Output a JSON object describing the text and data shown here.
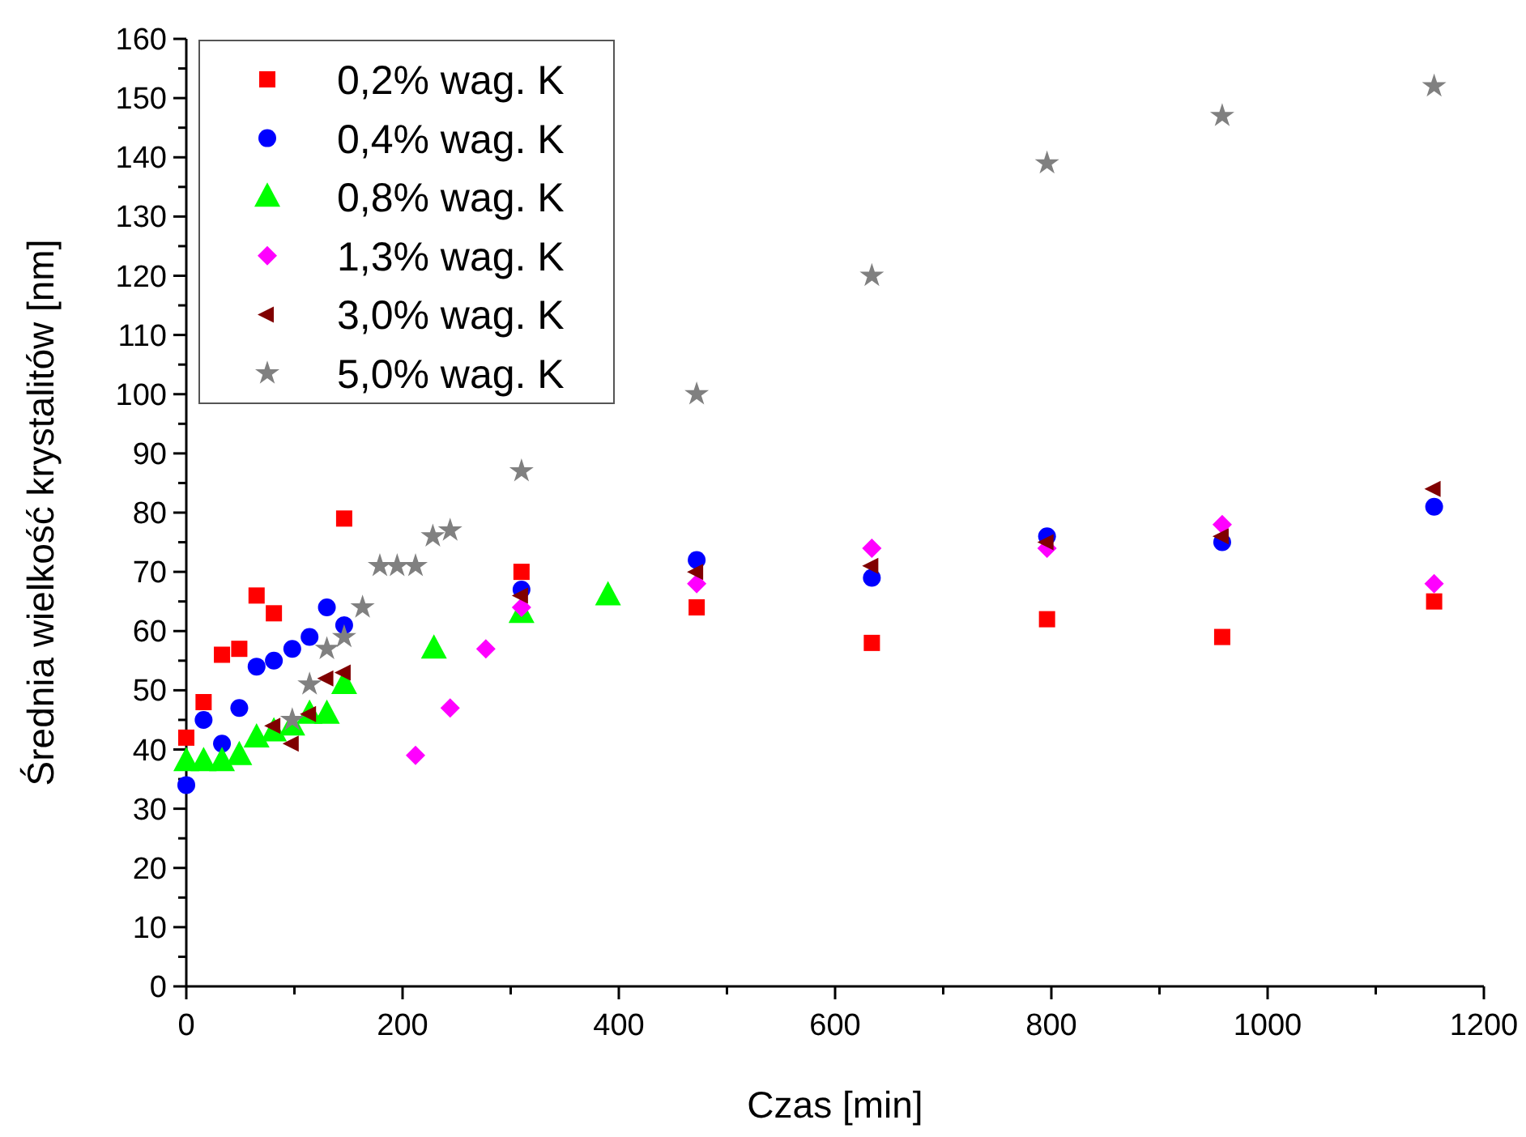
{
  "chart_data": {
    "type": "scatter",
    "xlabel": "Czas [min]",
    "ylabel": "Średnia wielkość krystalitów [nm]",
    "xlim": [
      0,
      1200
    ],
    "ylim": [
      0,
      160
    ],
    "xticks": [
      0,
      200,
      400,
      600,
      800,
      1000,
      1200
    ],
    "yticks": [
      0,
      10,
      20,
      30,
      40,
      50,
      60,
      70,
      80,
      90,
      100,
      110,
      120,
      130,
      140,
      150,
      160
    ],
    "grid": false,
    "legend": "top left",
    "series": [
      {
        "name": "0,2% wag. K",
        "color": "#ff0000",
        "marker": "square",
        "x": [
          0,
          16,
          33,
          49,
          65,
          81,
          146,
          310,
          472,
          634,
          796,
          958,
          1154
        ],
        "values": [
          42,
          48,
          56,
          57,
          66,
          63,
          79,
          70,
          64,
          58,
          62,
          59,
          65
        ]
      },
      {
        "name": "0,4% wag. K",
        "color": "#0000ff",
        "marker": "circle",
        "x": [
          0,
          16,
          33,
          49,
          65,
          81,
          98,
          114,
          130,
          146,
          310,
          472,
          634,
          796,
          958,
          1154
        ],
        "values": [
          34,
          45,
          41,
          47,
          54,
          55,
          57,
          59,
          64,
          61,
          67,
          72,
          69,
          76,
          75,
          81
        ]
      },
      {
        "name": "0,8% wag. K",
        "color": "#00ff00",
        "marker": "triangle",
        "x": [
          0,
          16,
          33,
          49,
          65,
          81,
          98,
          114,
          130,
          146,
          229,
          310,
          390
        ],
        "values": [
          38,
          38,
          38,
          39,
          42,
          43,
          44,
          46,
          46,
          51,
          57,
          63,
          66
        ]
      },
      {
        "name": "1,3% wag. K",
        "color": "#ff00ff",
        "marker": "diamond",
        "x": [
          212,
          244,
          277,
          310,
          472,
          634,
          796,
          958,
          1154
        ],
        "values": [
          39,
          47,
          57,
          64,
          68,
          74,
          74,
          78,
          68
        ]
      },
      {
        "name": "3,0% wag. K",
        "color": "#800000",
        "marker": "triangle-left",
        "x": [
          81,
          98,
          114,
          130,
          146,
          310,
          472,
          634,
          796,
          958,
          1154
        ],
        "values": [
          44,
          41,
          46,
          52,
          53,
          66,
          70,
          71,
          75,
          76,
          84
        ]
      },
      {
        "name": "5,0% wag. K",
        "color": "#808080",
        "marker": "star",
        "x": [
          98,
          114,
          130,
          146,
          163,
          179,
          195,
          212,
          228,
          244,
          310,
          472,
          634,
          796,
          958,
          1154
        ],
        "values": [
          45,
          51,
          57,
          59,
          64,
          71,
          71,
          71,
          76,
          77,
          87,
          100,
          120,
          139,
          147,
          152
        ]
      }
    ]
  }
}
